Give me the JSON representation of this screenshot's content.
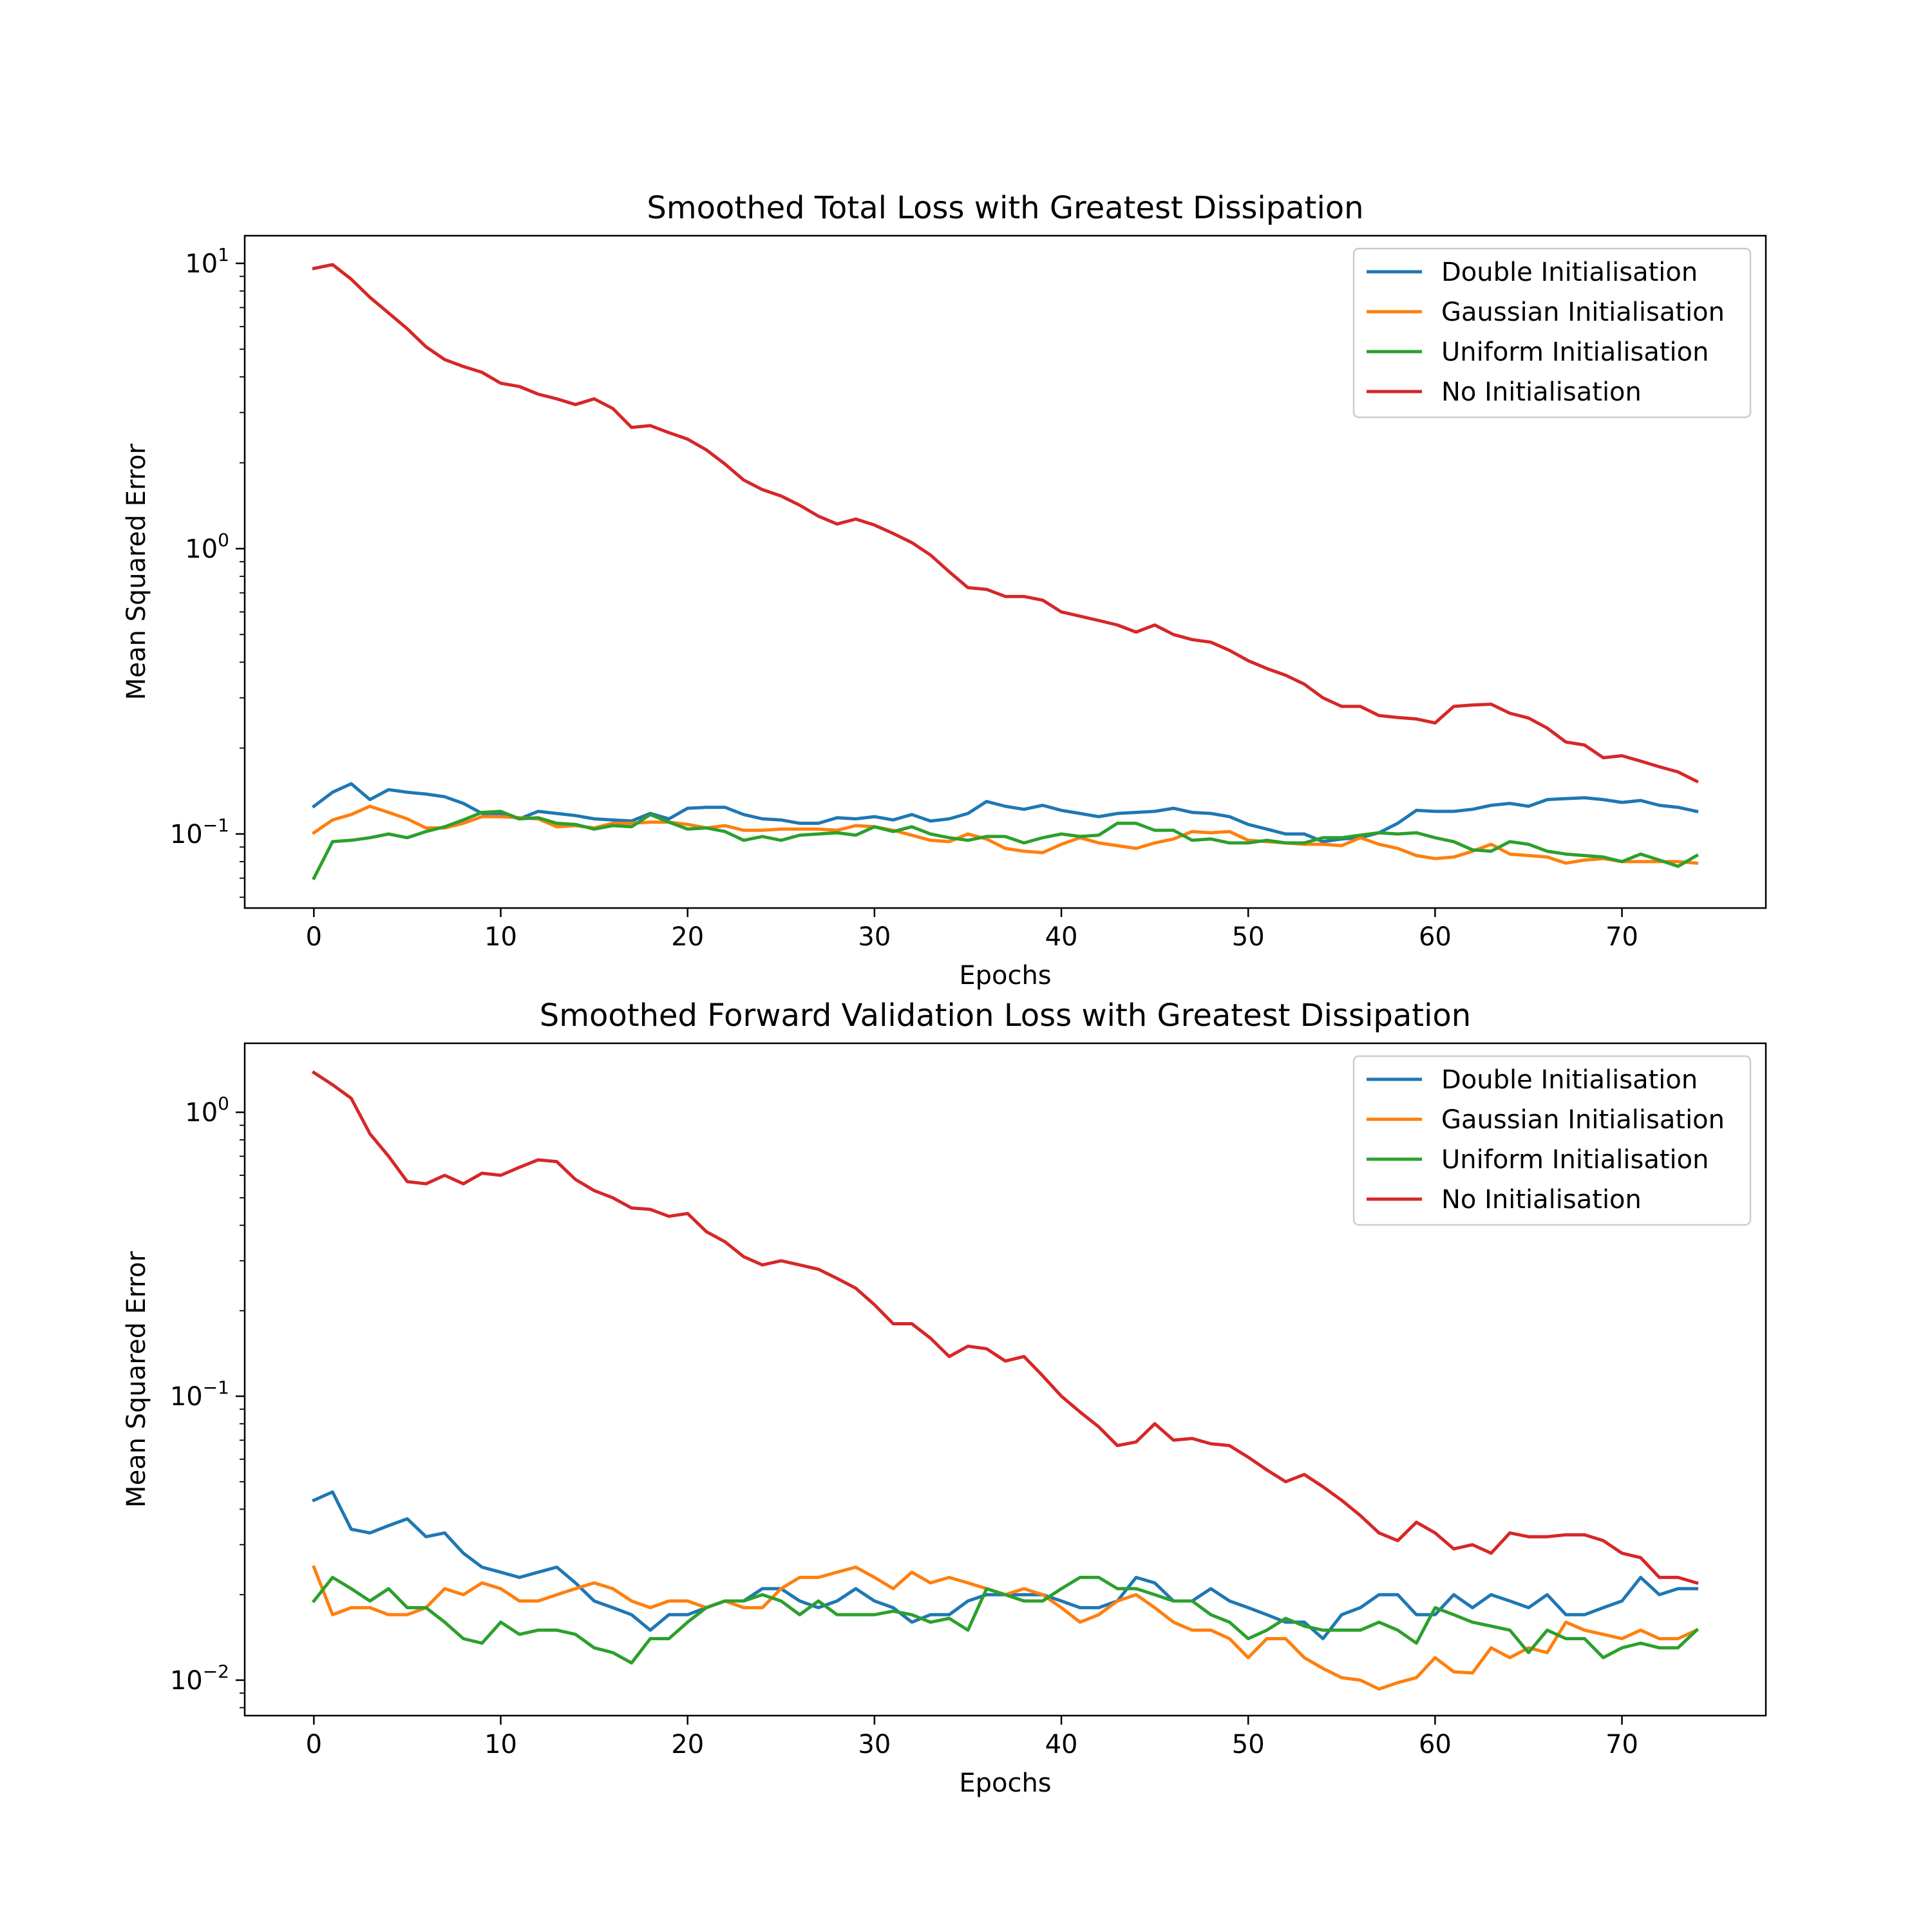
{
  "chart_data": [
    {
      "type": "line",
      "title": "Smoothed Total Loss with Greatest Dissipation",
      "xlabel": "Epochs",
      "ylabel": "Mean Squared Error",
      "yscale": "log",
      "xlim": [
        -3.7,
        77.7
      ],
      "ylim": [
        0.055,
        12.5
      ],
      "xticks": [
        0,
        10,
        20,
        30,
        40,
        50,
        60,
        70
      ],
      "yticks": [
        {
          "value": 0.1,
          "base": "10",
          "exp": "−1"
        },
        {
          "value": 1,
          "base": "10",
          "exp": "0"
        },
        {
          "value": 10,
          "base": "10",
          "exp": "1"
        }
      ],
      "grid": false,
      "legend": "upper right",
      "series": [
        {
          "name": "Double Initialisation",
          "color": "#1f77b4",
          "values": [
            0.125,
            0.14,
            0.15,
            0.132,
            0.143,
            0.14,
            0.138,
            0.135,
            0.128,
            0.118,
            0.118,
            0.113,
            0.12,
            0.118,
            0.116,
            0.113,
            0.112,
            0.111,
            0.118,
            0.113,
            0.123,
            0.124,
            0.124,
            0.117,
            0.113,
            0.112,
            0.109,
            0.109,
            0.114,
            0.113,
            0.115,
            0.112,
            0.117,
            0.111,
            0.113,
            0.118,
            0.13,
            0.125,
            0.122,
            0.126,
            0.121,
            0.118,
            0.115,
            0.118,
            0.119,
            0.12,
            0.123,
            0.119,
            0.118,
            0.115,
            0.108,
            0.104,
            0.1,
            0.1,
            0.094,
            0.096,
            0.097,
            0.101,
            0.109,
            0.121,
            0.12,
            0.12,
            0.122,
            0.126,
            0.128,
            0.125,
            0.132,
            0.133,
            0.134,
            0.132,
            0.129,
            0.131,
            0.126,
            0.124,
            0.12
          ]
        },
        {
          "name": "Gaussian Initialisation",
          "color": "#ff7f0e",
          "values": [
            0.101,
            0.112,
            0.117,
            0.125,
            0.119,
            0.113,
            0.105,
            0.105,
            0.109,
            0.115,
            0.115,
            0.114,
            0.113,
            0.106,
            0.107,
            0.105,
            0.109,
            0.109,
            0.11,
            0.11,
            0.108,
            0.105,
            0.107,
            0.103,
            0.103,
            0.104,
            0.104,
            0.104,
            0.103,
            0.107,
            0.106,
            0.103,
            0.099,
            0.095,
            0.094,
            0.1,
            0.096,
            0.089,
            0.087,
            0.086,
            0.092,
            0.097,
            0.093,
            0.091,
            0.089,
            0.093,
            0.096,
            0.102,
            0.101,
            0.102,
            0.095,
            0.094,
            0.093,
            0.092,
            0.092,
            0.091,
            0.097,
            0.092,
            0.089,
            0.084,
            0.082,
            0.083,
            0.087,
            0.092,
            0.085,
            0.084,
            0.083,
            0.079,
            0.081,
            0.082,
            0.08,
            0.08,
            0.08,
            0.08,
            0.079
          ]
        },
        {
          "name": "Uniform Initialisation",
          "color": "#2ca02c",
          "values": [
            0.07,
            0.094,
            0.095,
            0.097,
            0.1,
            0.097,
            0.102,
            0.106,
            0.112,
            0.119,
            0.12,
            0.113,
            0.114,
            0.109,
            0.108,
            0.104,
            0.107,
            0.106,
            0.117,
            0.11,
            0.104,
            0.105,
            0.102,
            0.095,
            0.098,
            0.095,
            0.099,
            0.1,
            0.101,
            0.099,
            0.106,
            0.102,
            0.106,
            0.1,
            0.097,
            0.095,
            0.098,
            0.098,
            0.093,
            0.097,
            0.1,
            0.098,
            0.099,
            0.109,
            0.109,
            0.103,
            0.103,
            0.095,
            0.096,
            0.093,
            0.093,
            0.095,
            0.093,
            0.093,
            0.097,
            0.097,
            0.099,
            0.101,
            0.1,
            0.101,
            0.097,
            0.094,
            0.088,
            0.087,
            0.094,
            0.092,
            0.087,
            0.085,
            0.084,
            0.083,
            0.08,
            0.085,
            0.081,
            0.077,
            0.084
          ]
        },
        {
          "name": "No Initialisation",
          "color": "#d62728",
          "values": [
            9.6,
            9.9,
            8.8,
            7.6,
            6.7,
            5.9,
            5.1,
            4.6,
            4.35,
            4.15,
            3.8,
            3.7,
            3.48,
            3.35,
            3.2,
            3.35,
            3.1,
            2.66,
            2.7,
            2.55,
            2.42,
            2.22,
            1.98,
            1.74,
            1.61,
            1.53,
            1.42,
            1.3,
            1.22,
            1.27,
            1.21,
            1.13,
            1.05,
            0.95,
            0.83,
            0.73,
            0.72,
            0.68,
            0.68,
            0.66,
            0.6,
            0.58,
            0.56,
            0.54,
            0.51,
            0.54,
            0.5,
            0.48,
            0.47,
            0.44,
            0.405,
            0.38,
            0.36,
            0.335,
            0.3,
            0.28,
            0.28,
            0.26,
            0.256,
            0.253,
            0.245,
            0.28,
            0.283,
            0.285,
            0.265,
            0.255,
            0.235,
            0.21,
            0.205,
            0.185,
            0.188,
            0.18,
            0.172,
            0.165,
            0.153
          ]
        }
      ]
    },
    {
      "type": "line",
      "title": "Smoothed Forward Validation Loss with Greatest Dissipation",
      "xlabel": "Epochs",
      "ylabel": "Mean Squared Error",
      "yscale": "log",
      "xlim": [
        -3.7,
        77.7
      ],
      "ylim": [
        0.0075,
        1.75
      ],
      "xticks": [
        0,
        10,
        20,
        30,
        40,
        50,
        60,
        70
      ],
      "yticks": [
        {
          "value": 0.01,
          "base": "10",
          "exp": "−2"
        },
        {
          "value": 0.1,
          "base": "10",
          "exp": "−1"
        },
        {
          "value": 1,
          "base": "10",
          "exp": "0"
        }
      ],
      "grid": false,
      "legend": "upper right",
      "series": [
        {
          "name": "Double Initialisation",
          "color": "#1f77b4",
          "values": [
            0.043,
            0.046,
            0.034,
            0.033,
            0.035,
            0.037,
            0.032,
            0.033,
            0.028,
            0.025,
            0.024,
            0.023,
            0.024,
            0.025,
            0.022,
            0.019,
            0.018,
            0.017,
            0.015,
            0.017,
            0.017,
            0.018,
            0.019,
            0.019,
            0.021,
            0.021,
            0.019,
            0.018,
            0.019,
            0.021,
            0.019,
            0.018,
            0.016,
            0.017,
            0.017,
            0.019,
            0.02,
            0.02,
            0.02,
            0.02,
            0.019,
            0.018,
            0.018,
            0.019,
            0.023,
            0.022,
            0.019,
            0.019,
            0.021,
            0.019,
            0.018,
            0.017,
            0.016,
            0.016,
            0.014,
            0.017,
            0.018,
            0.02,
            0.02,
            0.017,
            0.017,
            0.02,
            0.018,
            0.02,
            0.019,
            0.018,
            0.02,
            0.017,
            0.017,
            0.018,
            0.019,
            0.023,
            0.02,
            0.021,
            0.021
          ]
        },
        {
          "name": "Gaussian Initialisation",
          "color": "#ff7f0e",
          "values": [
            0.025,
            0.017,
            0.018,
            0.018,
            0.017,
            0.017,
            0.018,
            0.021,
            0.02,
            0.022,
            0.021,
            0.019,
            0.019,
            0.02,
            0.021,
            0.022,
            0.021,
            0.019,
            0.018,
            0.019,
            0.019,
            0.018,
            0.019,
            0.018,
            0.018,
            0.021,
            0.023,
            0.023,
            0.024,
            0.025,
            0.023,
            0.021,
            0.024,
            0.022,
            0.023,
            0.022,
            0.021,
            0.02,
            0.021,
            0.02,
            0.018,
            0.016,
            0.017,
            0.019,
            0.02,
            0.018,
            0.016,
            0.015,
            0.015,
            0.014,
            0.012,
            0.014,
            0.014,
            0.012,
            0.011,
            0.0102,
            0.01,
            0.0093,
            0.0098,
            0.0102,
            0.012,
            0.0107,
            0.0106,
            0.013,
            0.012,
            0.013,
            0.0125,
            0.016,
            0.015,
            0.0145,
            0.014,
            0.015,
            0.014,
            0.014,
            0.015
          ]
        },
        {
          "name": "Uniform Initialisation",
          "color": "#2ca02c",
          "values": [
            0.019,
            0.023,
            0.021,
            0.019,
            0.021,
            0.018,
            0.018,
            0.016,
            0.014,
            0.0135,
            0.016,
            0.0145,
            0.015,
            0.015,
            0.0145,
            0.013,
            0.0125,
            0.0115,
            0.014,
            0.014,
            0.016,
            0.018,
            0.019,
            0.019,
            0.02,
            0.019,
            0.017,
            0.019,
            0.017,
            0.017,
            0.017,
            0.0175,
            0.017,
            0.016,
            0.0165,
            0.015,
            0.021,
            0.02,
            0.019,
            0.019,
            0.021,
            0.023,
            0.023,
            0.021,
            0.021,
            0.02,
            0.019,
            0.019,
            0.017,
            0.016,
            0.014,
            0.015,
            0.0165,
            0.0155,
            0.015,
            0.015,
            0.015,
            0.016,
            0.015,
            0.0135,
            0.018,
            0.017,
            0.016,
            0.0155,
            0.015,
            0.0125,
            0.015,
            0.014,
            0.014,
            0.012,
            0.013,
            0.0135,
            0.013,
            0.013,
            0.015
          ]
        },
        {
          "name": "No Initialisation",
          "color": "#d62728",
          "values": [
            1.38,
            1.25,
            1.12,
            0.84,
            0.7,
            0.57,
            0.56,
            0.6,
            0.56,
            0.61,
            0.6,
            0.64,
            0.68,
            0.67,
            0.58,
            0.53,
            0.5,
            0.46,
            0.455,
            0.43,
            0.44,
            0.38,
            0.35,
            0.31,
            0.29,
            0.3,
            0.29,
            0.28,
            0.26,
            0.24,
            0.21,
            0.18,
            0.18,
            0.16,
            0.138,
            0.15,
            0.147,
            0.133,
            0.138,
            0.118,
            0.1,
            0.088,
            0.078,
            0.067,
            0.069,
            0.08,
            0.07,
            0.071,
            0.068,
            0.067,
            0.061,
            0.055,
            0.05,
            0.053,
            0.048,
            0.043,
            0.038,
            0.033,
            0.031,
            0.036,
            0.033,
            0.029,
            0.03,
            0.028,
            0.033,
            0.032,
            0.032,
            0.0325,
            0.0325,
            0.031,
            0.028,
            0.027,
            0.023,
            0.023,
            0.022
          ]
        }
      ]
    }
  ]
}
